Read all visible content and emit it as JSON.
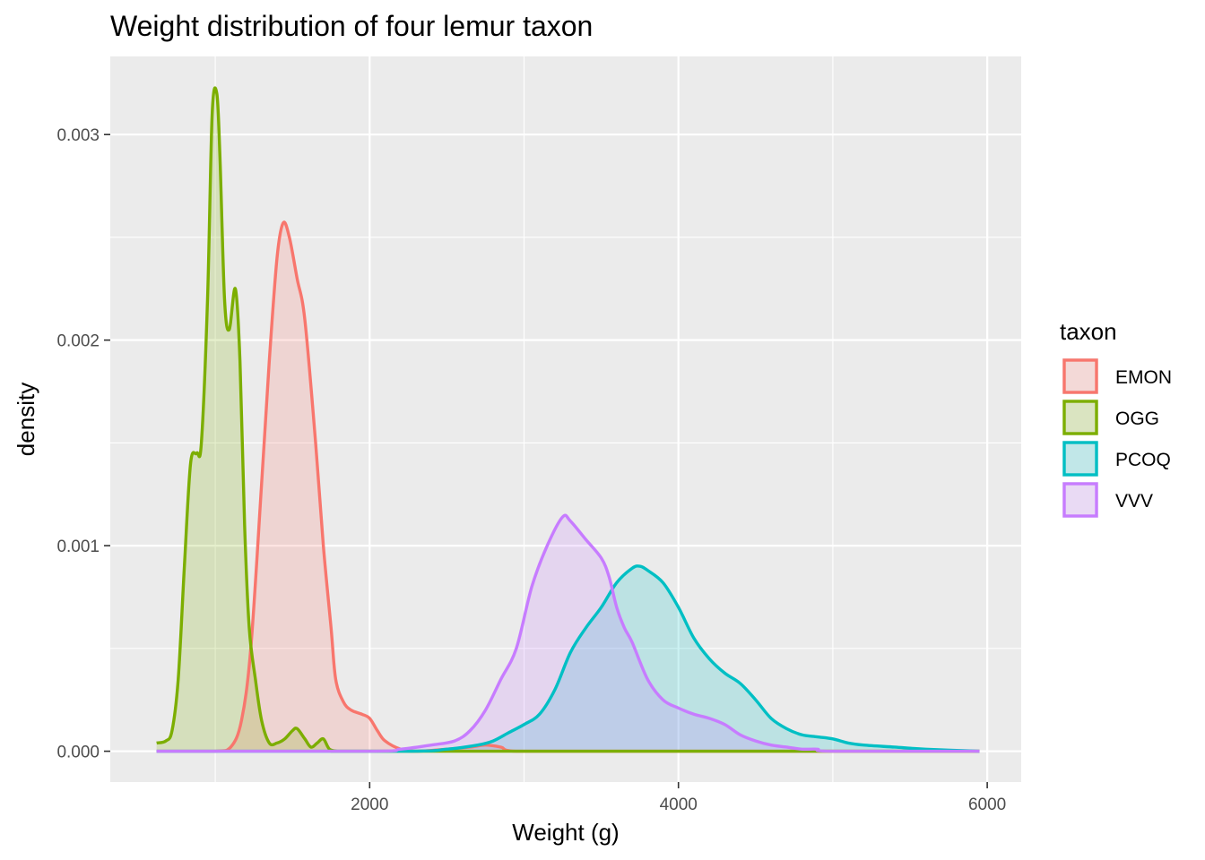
{
  "chart_data": {
    "type": "area",
    "title": "Weight distribution of four lemur taxon",
    "xlabel": "Weight (g)",
    "ylabel": "density",
    "xlim": [
      320,
      6220
    ],
    "ylim": [
      -0.00015,
      0.00338
    ],
    "x_ticks": [
      2000,
      4000,
      6000
    ],
    "x_tick_labels": [
      "2000",
      "4000",
      "6000"
    ],
    "y_ticks": [
      0,
      0.001,
      0.002,
      0.003
    ],
    "y_tick_labels": [
      "0.000",
      "0.001",
      "0.002",
      "0.003"
    ],
    "grid": true,
    "legend": {
      "title": "taxon",
      "position": "right"
    },
    "series": [
      {
        "name": "EMON",
        "color": "#F8766D",
        "x": [
          620,
          1000,
          1100,
          1170,
          1230,
          1300,
          1350,
          1400,
          1440,
          1480,
          1530,
          1580,
          1650,
          1700,
          1750,
          1780,
          1830,
          1880,
          1950,
          2000,
          2050,
          2100,
          2200,
          2300,
          2500,
          2650,
          2750,
          2850,
          2950,
          3500,
          5950
        ],
        "y": [
          0,
          0,
          2e-05,
          0.00015,
          0.0005,
          0.0013,
          0.0019,
          0.0024,
          0.00257,
          0.0025,
          0.0023,
          0.0021,
          0.0015,
          0.001,
          0.0006,
          0.00035,
          0.00024,
          0.0002,
          0.00018,
          0.00016,
          0.0001,
          5e-05,
          1e-05,
          0,
          1e-05,
          2e-05,
          3e-05,
          2e-05,
          0,
          0,
          0
        ]
      },
      {
        "name": "OGG",
        "color": "#7CAE00",
        "x": [
          620,
          680,
          720,
          760,
          800,
          840,
          880,
          910,
          950,
          980,
          1010,
          1030,
          1060,
          1090,
          1130,
          1160,
          1190,
          1220,
          1260,
          1300,
          1350,
          1400,
          1450,
          1500,
          1530,
          1580,
          1620,
          1660,
          1700,
          1740,
          1800,
          1900,
          2100,
          5950
        ],
        "y": [
          4e-05,
          5e-05,
          0.0001,
          0.00035,
          0.0009,
          0.0014,
          0.00145,
          0.0015,
          0.0022,
          0.0031,
          0.0032,
          0.0029,
          0.0022,
          0.00205,
          0.00225,
          0.0019,
          0.0011,
          0.0006,
          0.00035,
          0.00015,
          4e-05,
          4e-05,
          6e-05,
          0.0001,
          0.00011,
          6e-05,
          2e-05,
          4e-05,
          6e-05,
          1e-05,
          0,
          0,
          0,
          0
        ]
      },
      {
        "name": "PCOQ",
        "color": "#00BFC4",
        "x": [
          620,
          2200,
          2500,
          2700,
          2800,
          2900,
          3000,
          3100,
          3200,
          3300,
          3400,
          3500,
          3600,
          3700,
          3750,
          3800,
          3900,
          4000,
          4100,
          4200,
          4300,
          4400,
          4500,
          4600,
          4700,
          4800,
          4900,
          5000,
          5100,
          5200,
          5400,
          5600,
          5950
        ],
        "y": [
          0,
          0,
          1e-05,
          3e-05,
          5e-05,
          9e-05,
          0.00013,
          0.00018,
          0.0003,
          0.00048,
          0.0006,
          0.0007,
          0.00082,
          0.00089,
          0.0009,
          0.00088,
          0.00082,
          0.0007,
          0.00055,
          0.00045,
          0.00038,
          0.00033,
          0.00025,
          0.00016,
          0.00011,
          8e-05,
          7e-05,
          6e-05,
          4e-05,
          3e-05,
          2e-05,
          1e-05,
          0
        ]
      },
      {
        "name": "VVV",
        "color": "#C77CFF",
        "x": [
          620,
          2000,
          2200,
          2400,
          2550,
          2650,
          2750,
          2850,
          2950,
          3050,
          3150,
          3250,
          3300,
          3400,
          3500,
          3550,
          3600,
          3650,
          3700,
          3800,
          3900,
          4000,
          4100,
          4200,
          4300,
          4400,
          4500,
          4600,
          4700,
          4800,
          4900,
          5000,
          5950
        ],
        "y": [
          0,
          0,
          1e-05,
          3e-05,
          5e-05,
          0.0001,
          0.0002,
          0.00035,
          0.0005,
          0.0008,
          0.001,
          0.00114,
          0.00112,
          0.00103,
          0.00094,
          0.00085,
          0.0007,
          0.0006,
          0.00053,
          0.00035,
          0.00025,
          0.00021,
          0.00018,
          0.00016,
          0.00013,
          8e-05,
          5e-05,
          3e-05,
          2e-05,
          1e-05,
          1e-05,
          0,
          0
        ]
      }
    ]
  }
}
